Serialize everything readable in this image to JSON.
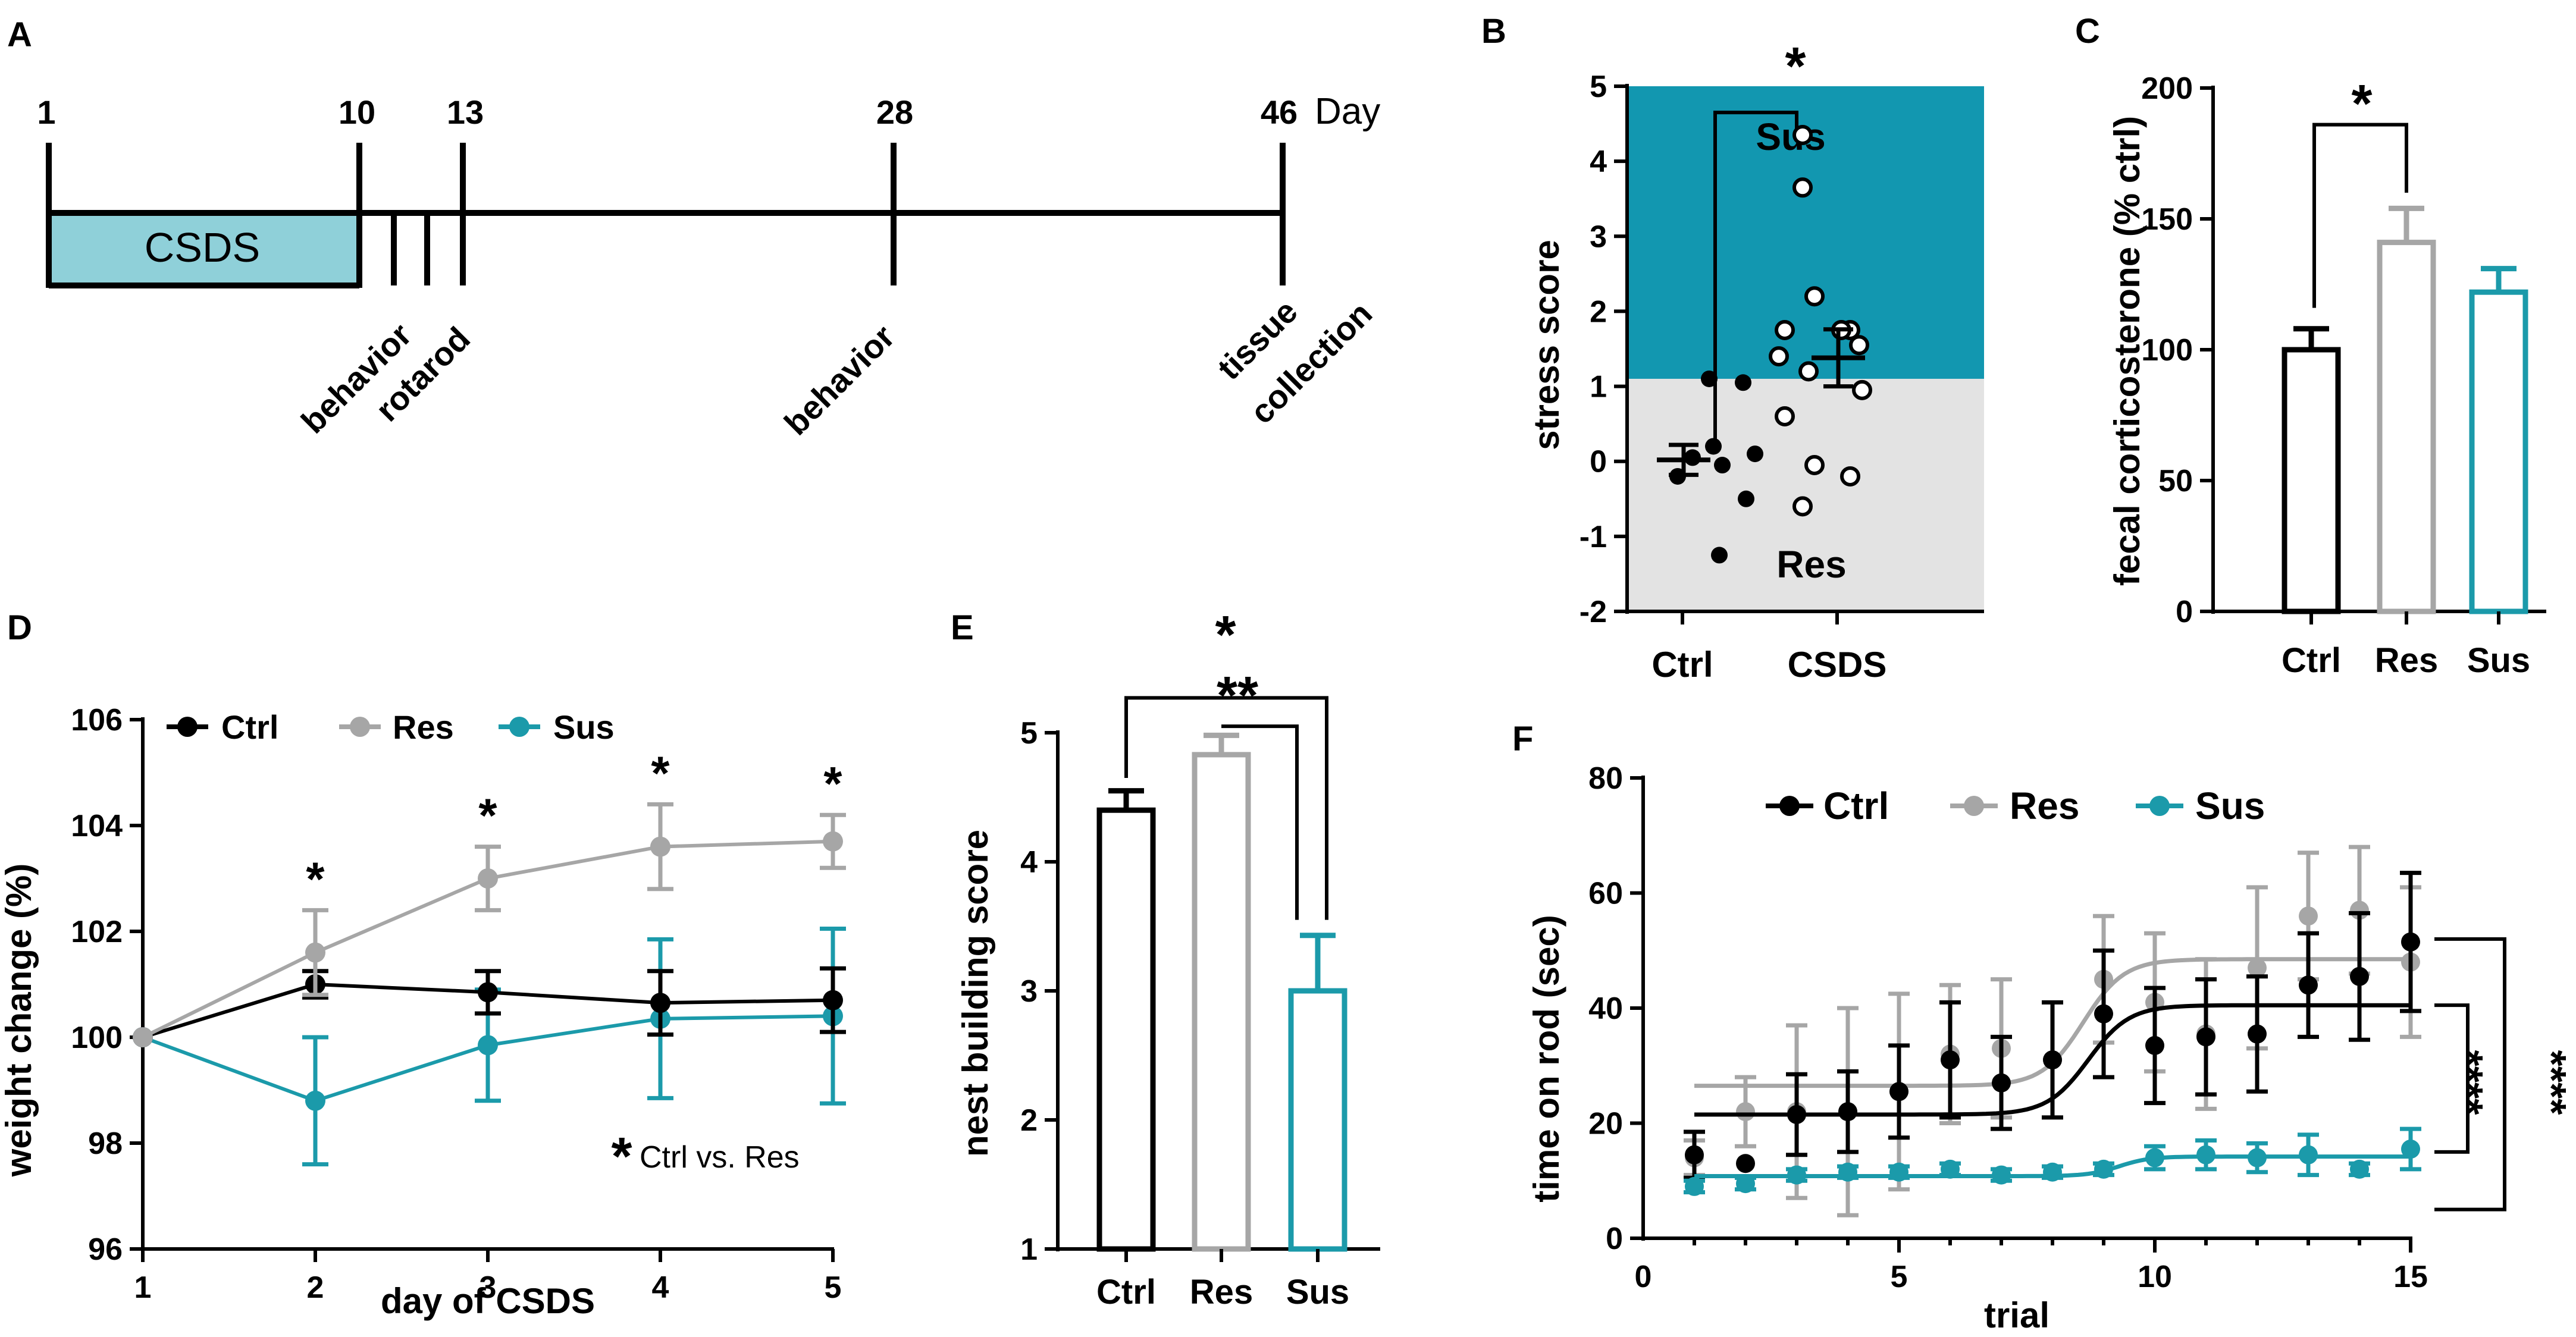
{
  "panels": {
    "A": "A",
    "B": "B",
    "C": "C",
    "D": "D",
    "E": "E",
    "F": "F"
  },
  "colors": {
    "ctrl": "#000000",
    "res": "#a6a6a6",
    "sus": "#1b9aaa",
    "sus_region": "#1297b0",
    "res_region": "#e3e3e3",
    "csds_box": "#8fd0d9"
  },
  "timeline": {
    "days": [
      "1",
      "10",
      "13",
      "28",
      "46"
    ],
    "day_label": "Day",
    "csds_label": "CSDS",
    "events": [
      "behavior",
      "rotarod",
      "behavior",
      "tissue",
      "collection"
    ]
  },
  "chart_data": [
    {
      "id": "B",
      "type": "scatter",
      "title": "",
      "ylabel": "stress score",
      "xlabel": "",
      "categories": [
        "Ctrl",
        "CSDS"
      ],
      "ylim": [
        -2,
        5
      ],
      "yticks": [
        "5",
        "4",
        "3",
        "2",
        "1",
        "0",
        "-1",
        "-2"
      ],
      "threshold": 1.1,
      "region_labels": {
        "upper": "Sus",
        "lower": "Res"
      },
      "significance": "*",
      "series": [
        {
          "name": "Ctrl",
          "values": [
            1.1,
            1.05,
            0.2,
            0.1,
            0.05,
            -0.05,
            -0.2,
            -0.5,
            -1.25
          ],
          "mean": 0.02,
          "sem": 0.2
        },
        {
          "name": "CSDS",
          "values": [
            4.35,
            3.65,
            2.2,
            1.75,
            1.75,
            1.75,
            1.55,
            1.4,
            1.2,
            0.95,
            0.6,
            -0.05,
            -0.2,
            -0.6
          ],
          "mean": 1.38,
          "sem": 0.38
        }
      ]
    },
    {
      "id": "C",
      "type": "bar",
      "ylabel": "fecal corticosterone (% ctrl)",
      "categories": [
        "Ctrl",
        "Res",
        "Sus"
      ],
      "values": [
        100,
        141,
        122
      ],
      "errors": [
        8,
        13,
        9
      ],
      "ylim": [
        0,
        200
      ],
      "yticks": [
        "200",
        "150",
        "100",
        "50",
        "0"
      ],
      "significance": "*"
    },
    {
      "id": "D",
      "type": "line",
      "xlabel": "day of CSDS",
      "ylabel": "weight change (%)",
      "x": [
        1,
        2,
        3,
        4,
        5
      ],
      "xticks": [
        "1",
        "2",
        "3",
        "4",
        "5"
      ],
      "ylim": [
        96,
        106
      ],
      "yticks": [
        "106",
        "104",
        "102",
        "100",
        "98",
        "96"
      ],
      "legend": [
        "Ctrl",
        "Res",
        "Sus"
      ],
      "series": [
        {
          "name": "Ctrl",
          "values": [
            100,
            101.0,
            100.85,
            100.65,
            100.7
          ],
          "errors": [
            0,
            0.25,
            0.4,
            0.6,
            0.6
          ]
        },
        {
          "name": "Res",
          "values": [
            100,
            101.6,
            103.0,
            103.6,
            103.7
          ],
          "errors": [
            0,
            0.8,
            0.6,
            0.8,
            0.5
          ]
        },
        {
          "name": "Sus",
          "values": [
            100,
            98.8,
            99.85,
            100.35,
            100.4
          ],
          "errors": [
            0,
            1.2,
            1.05,
            1.5,
            1.65
          ]
        }
      ],
      "significance_marks": [
        "*",
        "*",
        "*",
        "*"
      ],
      "note_star": "*",
      "note": "Ctrl vs. Res"
    },
    {
      "id": "E",
      "type": "bar",
      "ylabel": "nest building score",
      "categories": [
        "Ctrl",
        "Res",
        "Sus"
      ],
      "values": [
        4.4,
        4.83,
        3.0
      ],
      "errors": [
        0.15,
        0.15,
        0.43
      ],
      "ylim": [
        1,
        5
      ],
      "yticks": [
        "5",
        "4",
        "3",
        "2",
        "1"
      ],
      "significance": [
        "*",
        "**"
      ]
    },
    {
      "id": "F",
      "type": "line",
      "xlabel": "trial",
      "ylabel": "time on rod (sec)",
      "xlim": [
        0,
        15
      ],
      "xticks": [
        "0",
        "5",
        "10",
        "15"
      ],
      "ylim": [
        0,
        80
      ],
      "yticks": [
        "80",
        "60",
        "40",
        "20",
        "0"
      ],
      "legend": [
        "Ctrl",
        "Res",
        "Sus"
      ],
      "x": [
        1,
        2,
        3,
        4,
        5,
        6,
        7,
        8,
        9,
        10,
        11,
        12,
        13,
        14,
        15
      ],
      "series": [
        {
          "name": "Ctrl",
          "values": [
            14.5,
            13,
            21.5,
            22,
            25.5,
            31,
            27,
            31,
            39,
            33.5,
            35,
            35.5,
            44,
            45.5,
            51.5
          ],
          "errors": [
            4,
            0,
            7,
            7,
            8,
            10,
            8,
            10,
            11,
            10,
            10,
            10,
            9,
            11,
            12
          ],
          "fit": [
            21.5,
            40.5,
            8.7,
            0.4
          ]
        },
        {
          "name": "Res",
          "values": [
            14,
            22,
            22,
            22,
            25.5,
            32,
            33,
            31,
            45,
            41,
            35.5,
            47,
            56,
            57,
            48
          ],
          "errors": [
            3,
            6,
            15,
            18,
            17,
            12,
            12,
            10,
            11,
            12,
            13,
            14,
            11,
            11,
            13
          ],
          "fit": [
            26.5,
            48.5,
            8.6,
            0.4
          ]
        },
        {
          "name": "Sus",
          "values": [
            9,
            9.5,
            11,
            11.5,
            11.5,
            12,
            11,
            11.5,
            12,
            14,
            14.5,
            14,
            14.5,
            12,
            15.5
          ],
          "errors": [
            1,
            1,
            1,
            1,
            1,
            1,
            1,
            1,
            1,
            2,
            2.5,
            2.5,
            3.5,
            1,
            3.5
          ],
          "fit": [
            10.8,
            14.2,
            9.3,
            0.3
          ]
        }
      ],
      "significance": [
        "****",
        "****"
      ]
    }
  ]
}
